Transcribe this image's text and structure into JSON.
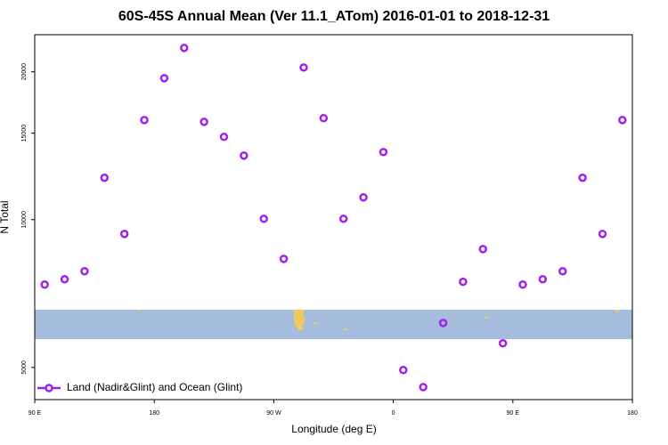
{
  "chart_data": {
    "type": "scatter",
    "title": "60S-45S Annual Mean (Ver 11.1_ATom)   2016-01-01 to 2018-12-31",
    "x_label": "Longitude (deg E)",
    "y_label": "N Total",
    "series": [
      {
        "name": "Land (Nadir&Glint) and Ocean (Glint)",
        "color": "#a020f0",
        "x": [
          97.5,
          112.5,
          127.5,
          142.5,
          157.5,
          172.5,
          187.5,
          202.5,
          217.5,
          232.5,
          247.5,
          262.5,
          277.5,
          292.5,
          307.5,
          322.5,
          337.5,
          352.5,
          367.5,
          382.5,
          397.5,
          412.5,
          427.5,
          442.5,
          457.5,
          472.5,
          487.5,
          502.5,
          517.5,
          532.5
        ],
        "values": [
          7375,
          7560,
          7850,
          12170,
          9350,
          15950,
          19410,
          22370,
          15820,
          14740,
          13500,
          10040,
          8320,
          20410,
          16090,
          10040,
          11100,
          13730,
          4940,
          4560,
          6160,
          7470,
          8710,
          5600,
          7375,
          7560,
          7850,
          12170,
          9350,
          15950
        ]
      }
    ],
    "xlim": [
      90,
      540
    ],
    "xticks": [
      {
        "value": 90,
        "label": "90 E"
      },
      {
        "value": 180,
        "label": "180"
      },
      {
        "value": 270,
        "label": "90 W"
      },
      {
        "value": 360,
        "label": "0"
      },
      {
        "value": 450,
        "label": "90 E"
      },
      {
        "value": 540,
        "label": "180"
      }
    ],
    "ylim": [
      4300,
      23800
    ],
    "yticks": [
      5000,
      10000,
      15000,
      20000
    ],
    "ylog": true,
    "legend": "bottom-left"
  }
}
